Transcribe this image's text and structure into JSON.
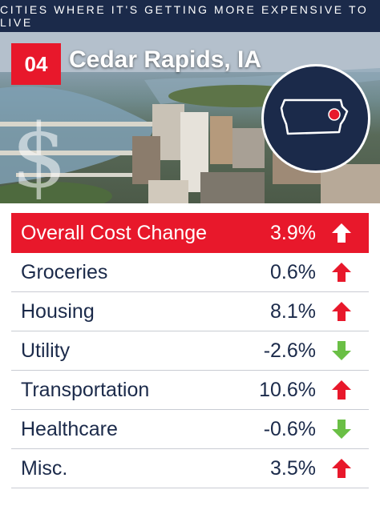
{
  "header": {
    "title": "CITIES WHERE IT'S GETTING MORE EXPENSIVE TO LIVE"
  },
  "city": {
    "rank": "04",
    "name": "Cedar Rapids, IA"
  },
  "colors": {
    "navy": "#1b2a4a",
    "red": "#e8182b",
    "up": "#e8182b",
    "down": "#6abf45"
  },
  "rows": [
    {
      "label": "Overall Cost Change",
      "value": "3.9%",
      "direction": "up"
    },
    {
      "label": "Groceries",
      "value": "0.6%",
      "direction": "up"
    },
    {
      "label": "Housing",
      "value": "8.1%",
      "direction": "up"
    },
    {
      "label": "Utility",
      "value": "-2.6%",
      "direction": "down"
    },
    {
      "label": "Transportation",
      "value": "10.6%",
      "direction": "up"
    },
    {
      "label": "Healthcare",
      "value": "-0.6%",
      "direction": "down"
    },
    {
      "label": "Misc.",
      "value": "3.5%",
      "direction": "up"
    }
  ],
  "icons": {
    "dollar": "dollar-sign-icon",
    "map": "iowa-map-icon",
    "up": "arrow-up-icon",
    "down": "arrow-down-icon"
  }
}
